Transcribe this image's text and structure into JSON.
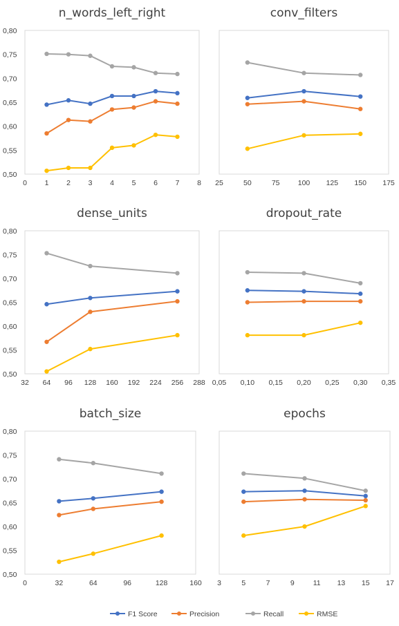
{
  "legend": [
    "F1 Score",
    "Precision",
    "Recall",
    "RMSE"
  ],
  "colors": {
    "F1 Score": "#4472c4",
    "Precision": "#ed7d31",
    "Recall": "#a5a5a5",
    "RMSE": "#ffc000"
  },
  "chart_data": [
    {
      "type": "line",
      "title": "n_words_left_right",
      "xlim": [
        0,
        8
      ],
      "xticks": [
        "0",
        "1",
        "2",
        "3",
        "4",
        "5",
        "6",
        "7",
        "8"
      ],
      "ylim": [
        0.5,
        0.8
      ],
      "yticks": [
        "0,50",
        "0,55",
        "0,60",
        "0,65",
        "0,70",
        "0,75",
        "0,80"
      ],
      "x": [
        1,
        2,
        3,
        4,
        5,
        6,
        7
      ],
      "series": [
        {
          "name": "F1 Score",
          "values": [
            0.645,
            0.654,
            0.647,
            0.663,
            0.663,
            0.673,
            0.669
          ]
        },
        {
          "name": "Precision",
          "values": [
            0.585,
            0.613,
            0.61,
            0.635,
            0.639,
            0.652,
            0.647
          ]
        },
        {
          "name": "Recall",
          "values": [
            0.751,
            0.75,
            0.747,
            0.725,
            0.723,
            0.711,
            0.709
          ]
        },
        {
          "name": "RMSE",
          "values": [
            0.507,
            0.513,
            0.513,
            0.555,
            0.56,
            0.582,
            0.578
          ]
        }
      ]
    },
    {
      "type": "line",
      "title": "conv_filters",
      "xlim": [
        25,
        175
      ],
      "xticks": [
        "25",
        "50",
        "75",
        "100",
        "125",
        "150",
        "175"
      ],
      "ylim": [
        0.5,
        0.8
      ],
      "yticks": [
        "0,50",
        "0,55",
        "0,60",
        "0,65",
        "0,70",
        "0,75",
        "0,80"
      ],
      "x": [
        50,
        100,
        150
      ],
      "series": [
        {
          "name": "F1 Score",
          "values": [
            0.659,
            0.673,
            0.662
          ]
        },
        {
          "name": "Precision",
          "values": [
            0.646,
            0.652,
            0.636
          ]
        },
        {
          "name": "Recall",
          "values": [
            0.733,
            0.711,
            0.707
          ]
        },
        {
          "name": "RMSE",
          "values": [
            0.553,
            0.581,
            0.584
          ]
        }
      ]
    },
    {
      "type": "line",
      "title": "dense_units",
      "xlim": [
        32,
        288
      ],
      "xticks": [
        "32",
        "64",
        "96",
        "128",
        "160",
        "192",
        "224",
        "256",
        "288"
      ],
      "ylim": [
        0.5,
        0.8
      ],
      "yticks": [
        "0,50",
        "0,55",
        "0,60",
        "0,65",
        "0,70",
        "0,75",
        "0,80"
      ],
      "x": [
        64,
        128,
        256
      ],
      "series": [
        {
          "name": "F1 Score",
          "values": [
            0.646,
            0.659,
            0.673
          ]
        },
        {
          "name": "Precision",
          "values": [
            0.567,
            0.63,
            0.652
          ]
        },
        {
          "name": "Recall",
          "values": [
            0.753,
            0.726,
            0.711
          ]
        },
        {
          "name": "RMSE",
          "values": [
            0.505,
            0.552,
            0.581
          ]
        }
      ]
    },
    {
      "type": "line",
      "title": "dropout_rate",
      "xlim": [
        0.05,
        0.35
      ],
      "xticks": [
        "0,05",
        "0,10",
        "0,15",
        "0,20",
        "0,25",
        "0,30",
        "0,35"
      ],
      "ylim": [
        0.5,
        0.8
      ],
      "yticks": [
        "0,50",
        "0,55",
        "0,60",
        "0,65",
        "0,70",
        "0,75",
        "0,80"
      ],
      "x": [
        0.1,
        0.2,
        0.3
      ],
      "series": [
        {
          "name": "F1 Score",
          "values": [
            0.675,
            0.673,
            0.668
          ]
        },
        {
          "name": "Precision",
          "values": [
            0.65,
            0.652,
            0.652
          ]
        },
        {
          "name": "Recall",
          "values": [
            0.713,
            0.711,
            0.69
          ]
        },
        {
          "name": "RMSE",
          "values": [
            0.581,
            0.581,
            0.607
          ]
        }
      ]
    },
    {
      "type": "line",
      "title": "batch_size",
      "xlim": [
        0,
        160
      ],
      "xticks": [
        "0",
        "32",
        "64",
        "96",
        "128",
        "160"
      ],
      "ylim": [
        0.5,
        0.8
      ],
      "yticks": [
        "0,50",
        "0,55",
        "0,60",
        "0,65",
        "0,70",
        "0,75",
        "0,80"
      ],
      "x": [
        32,
        64,
        128
      ],
      "series": [
        {
          "name": "F1 Score",
          "values": [
            0.653,
            0.659,
            0.673
          ]
        },
        {
          "name": "Precision",
          "values": [
            0.624,
            0.637,
            0.652
          ]
        },
        {
          "name": "Recall",
          "values": [
            0.741,
            0.733,
            0.711
          ]
        },
        {
          "name": "RMSE",
          "values": [
            0.526,
            0.543,
            0.581
          ]
        }
      ]
    },
    {
      "type": "line",
      "title": "epochs",
      "xlim": [
        3,
        17
      ],
      "xticks": [
        "3",
        "5",
        "7",
        "9",
        "11",
        "13",
        "15",
        "17"
      ],
      "ylim": [
        0.5,
        0.8
      ],
      "yticks": [
        "0,50",
        "0,55",
        "0,60",
        "0,65",
        "0,70",
        "0,75",
        "0,80"
      ],
      "x": [
        5,
        10,
        15
      ],
      "series": [
        {
          "name": "F1 Score",
          "values": [
            0.673,
            0.675,
            0.664
          ]
        },
        {
          "name": "Precision",
          "values": [
            0.652,
            0.657,
            0.655
          ]
        },
        {
          "name": "Recall",
          "values": [
            0.711,
            0.701,
            0.675
          ]
        },
        {
          "name": "RMSE",
          "values": [
            0.581,
            0.6,
            0.643
          ]
        }
      ]
    }
  ]
}
